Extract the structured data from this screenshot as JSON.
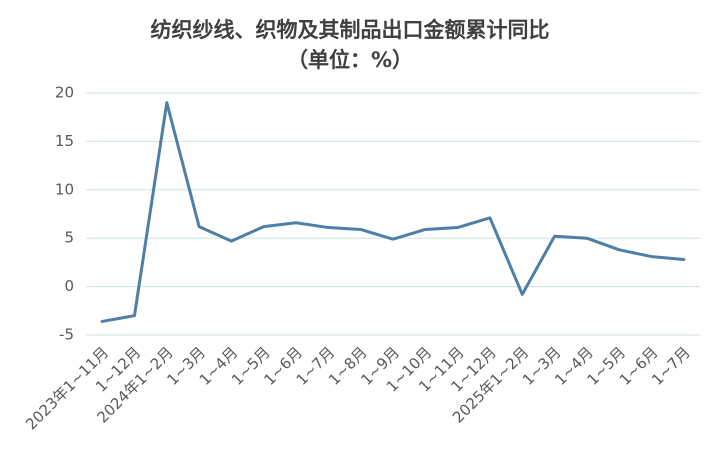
{
  "chart_data": {
    "type": "line",
    "title": "纺织纱线、织物及其制品出口金额累计同比",
    "subtitle": "（单位：%）",
    "categories": [
      "2023年1~11月",
      "1~12月",
      "2024年1~2月",
      "1~3月",
      "1~4月",
      "1~5月",
      "1~6月",
      "1~7月",
      "1~8月",
      "1~9月",
      "1~10月",
      "1~11月",
      "1~12月",
      "2025年1~2月",
      "1~3月",
      "1~4月",
      "1~5月",
      "1~6月",
      "1~7月"
    ],
    "values": [
      -3.6,
      -3.0,
      19.0,
      6.2,
      4.7,
      6.2,
      6.6,
      6.1,
      5.9,
      4.9,
      5.9,
      6.1,
      7.1,
      -0.8,
      5.2,
      5.0,
      3.8,
      3.1,
      2.8
    ],
    "color": "#4f7ea7",
    "ylim": [
      -5,
      20
    ],
    "yticks": [
      -5,
      0,
      5,
      10,
      15,
      20
    ],
    "grid": true
  }
}
